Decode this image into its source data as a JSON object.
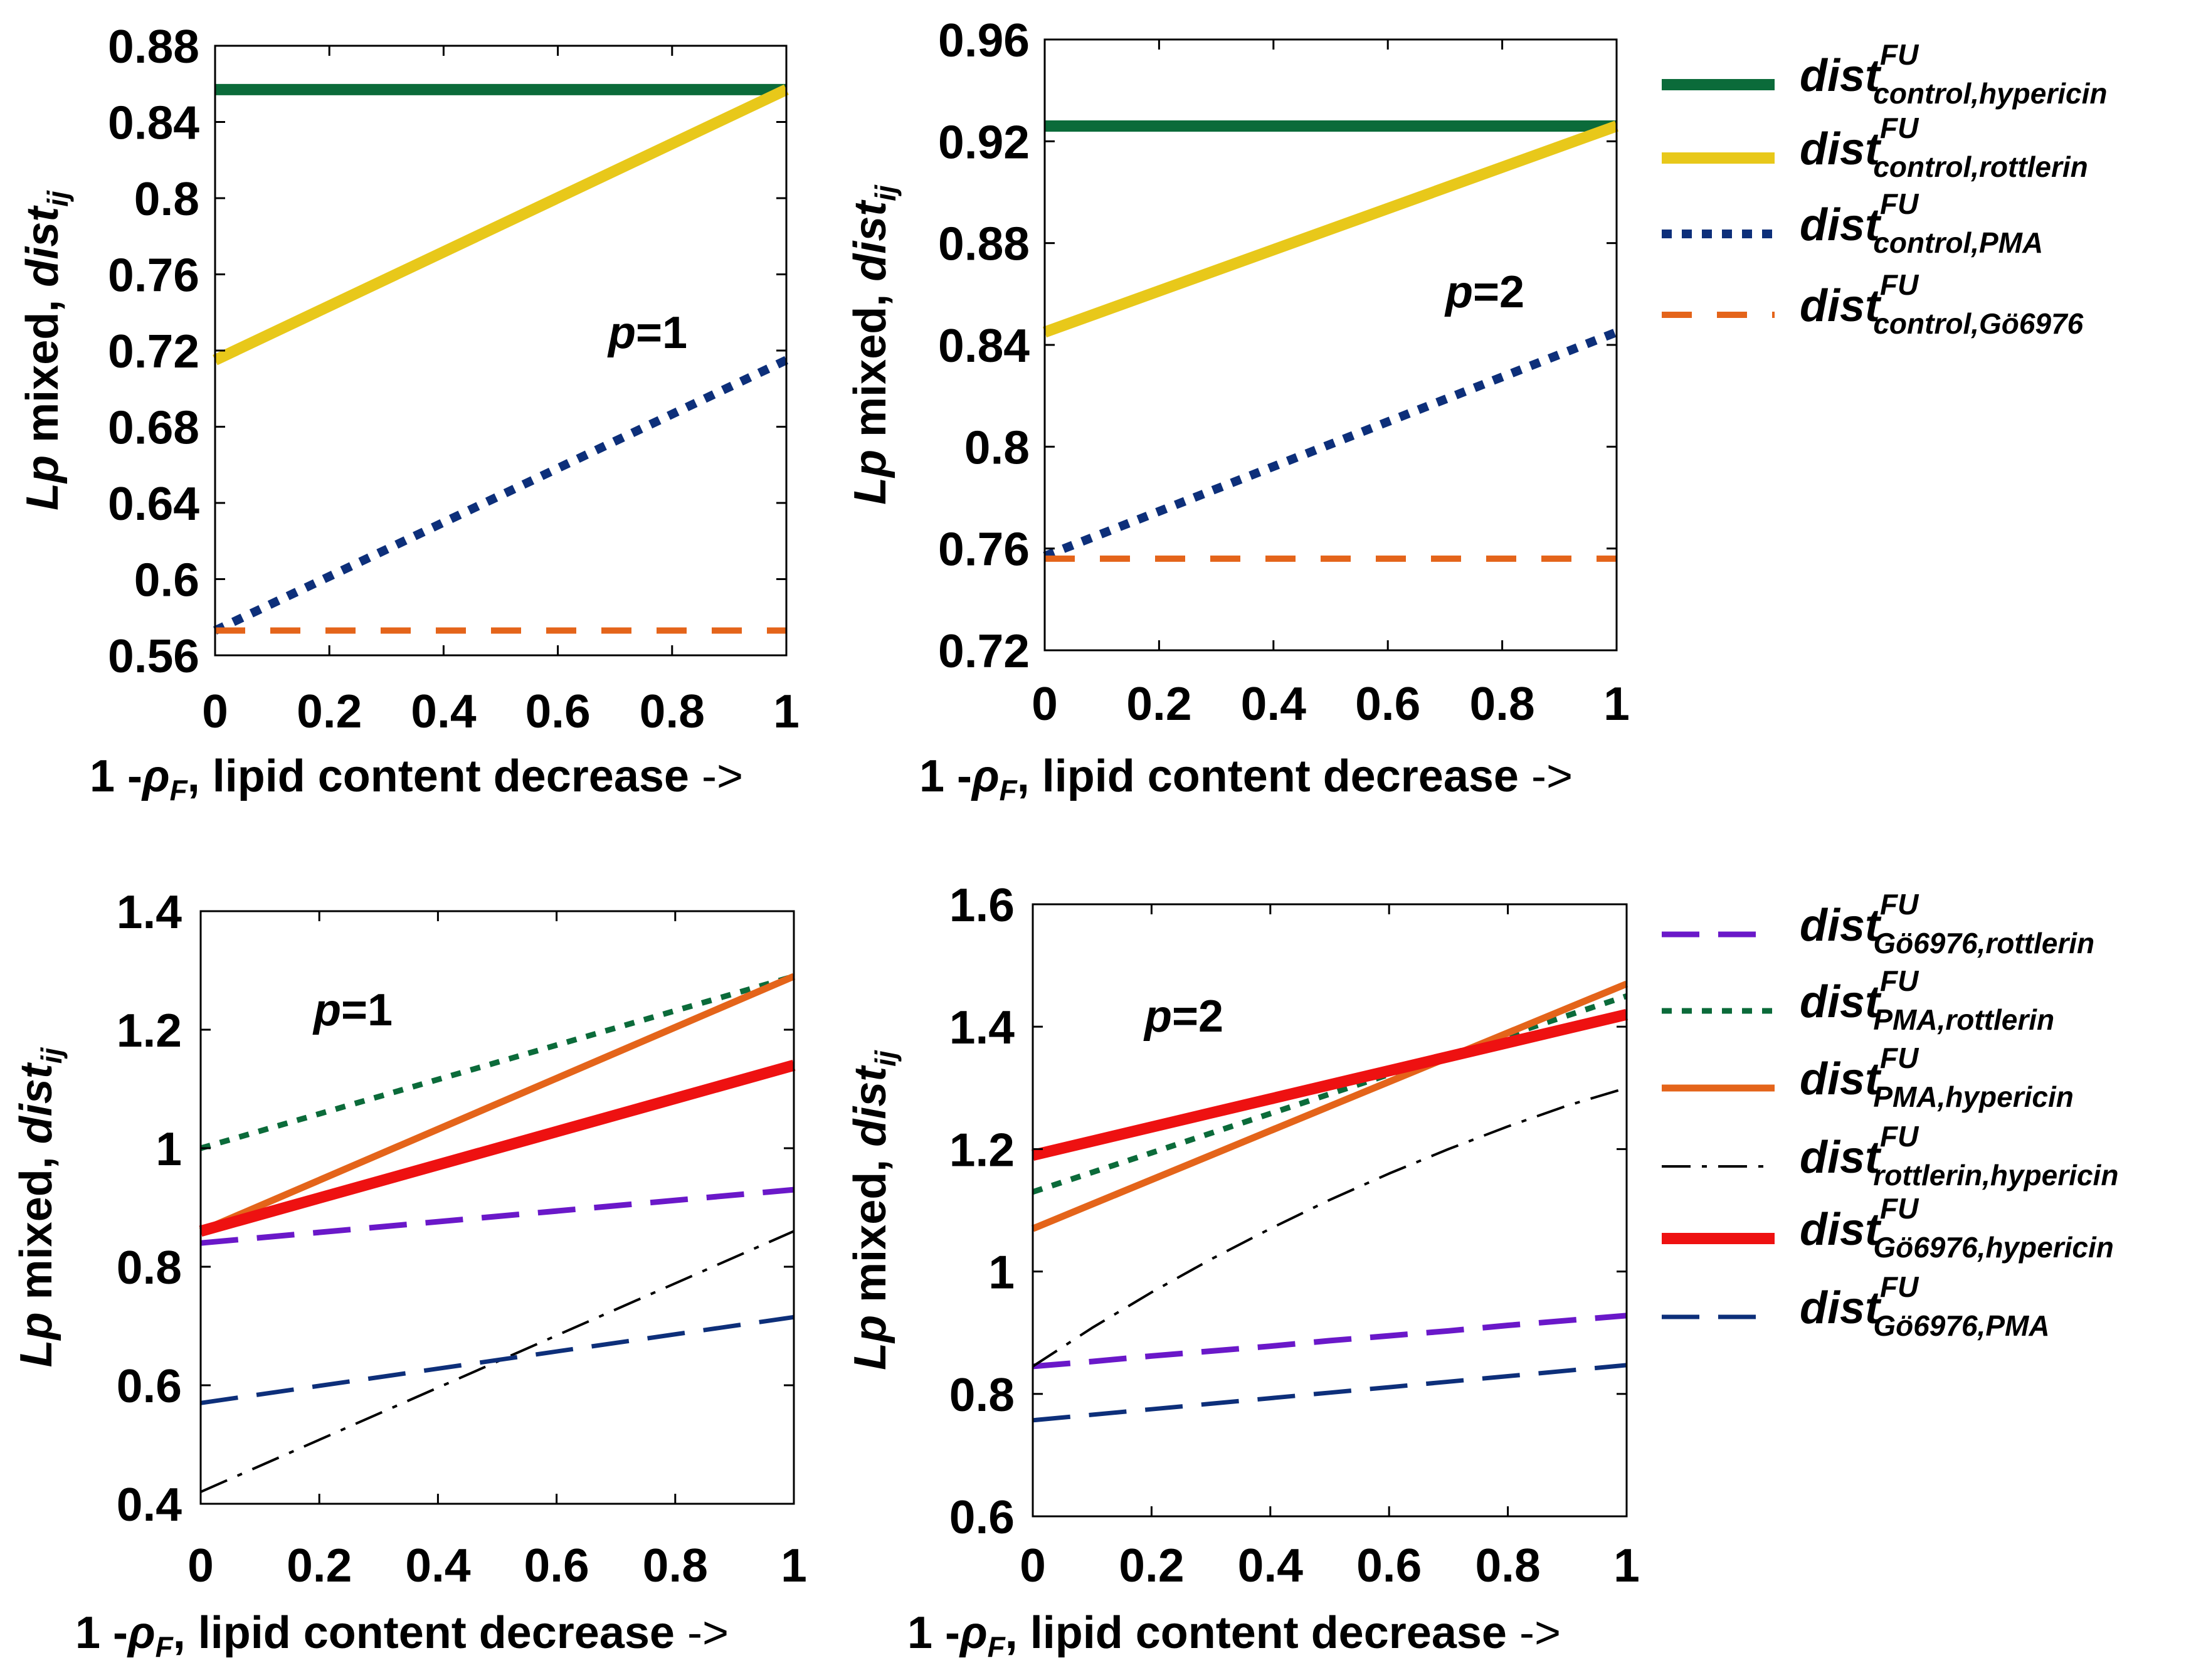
{
  "figure": {
    "arrow_glyph": "->"
  },
  "chart_data": [
    {
      "type": "line",
      "panel": "top-left",
      "annotation": {
        "italic": "p",
        "rest": "=1"
      },
      "x": [
        0,
        1
      ],
      "xlim": [
        0,
        1
      ],
      "ylim": [
        0.56,
        0.88
      ],
      "xticks": [
        0,
        0.2,
        0.4,
        0.6,
        0.8,
        1
      ],
      "xtick_labels": [
        "0",
        "0.2",
        "0.4",
        "0.6",
        "0.8",
        "1"
      ],
      "yticks": [
        0.56,
        0.6,
        0.64,
        0.68,
        0.72,
        0.76,
        0.8,
        0.84,
        0.88
      ],
      "ytick_labels": [
        "0.56",
        "0.6",
        "0.64",
        "0.68",
        "0.72",
        "0.76",
        "0.8",
        "0.84",
        "0.88"
      ],
      "xlabel": {
        "prefix": "1 -",
        "rho": "ρ",
        "sub": "F",
        "suffix": ", lipid content decrease"
      },
      "ylabel": {
        "italic1": "Lp",
        "middle": " mixed, ",
        "italic2": "dist",
        "sub": "ij"
      },
      "series": [
        {
          "name": "control,hypericin",
          "values": [
            0.857,
            0.857
          ],
          "color": "#0b6b3a",
          "style": "solid",
          "width": 18
        },
        {
          "name": "control,rottlerin",
          "values": [
            0.715,
            0.857
          ],
          "color": "#e8c81a",
          "style": "solid",
          "width": 18
        },
        {
          "name": "control,PMA",
          "values": [
            0.573,
            0.715
          ],
          "color": "#0d2f7a",
          "style": "dotted",
          "width": 14
        },
        {
          "name": "control,Gö6976",
          "values": [
            0.573,
            0.573
          ],
          "color": "#e4641a",
          "style": "dashed",
          "width": 10
        }
      ]
    },
    {
      "type": "line",
      "panel": "top-right",
      "annotation": {
        "italic": "p",
        "rest": "=2"
      },
      "x": [
        0,
        1
      ],
      "xlim": [
        0,
        1
      ],
      "ylim": [
        0.72,
        0.96
      ],
      "xticks": [
        0,
        0.2,
        0.4,
        0.6,
        0.8,
        1
      ],
      "xtick_labels": [
        "0",
        "0.2",
        "0.4",
        "0.6",
        "0.8",
        "1"
      ],
      "yticks": [
        0.72,
        0.76,
        0.8,
        0.84,
        0.88,
        0.92,
        0.96
      ],
      "ytick_labels": [
        "0.72",
        "0.76",
        "0.8",
        "0.84",
        "0.88",
        "0.92",
        "0.96"
      ],
      "xlabel": {
        "prefix": "1 -",
        "rho": "ρ",
        "sub": "F",
        "suffix": ", lipid content decrease"
      },
      "ylabel": {
        "italic1": "Lp",
        "middle": " mixed, ",
        "italic2": "dist",
        "sub": "ij"
      },
      "series": [
        {
          "name": "control,hypericin",
          "values": [
            0.926,
            0.926
          ],
          "color": "#0b6b3a",
          "style": "solid",
          "width": 18
        },
        {
          "name": "control,rottlerin",
          "values": [
            0.845,
            0.926
          ],
          "color": "#e8c81a",
          "style": "solid",
          "width": 18
        },
        {
          "name": "control,PMA",
          "values": [
            0.757,
            0.845
          ],
          "color": "#0d2f7a",
          "style": "dotted",
          "width": 14
        },
        {
          "name": "control,Gö6976",
          "values": [
            0.756,
            0.756
          ],
          "color": "#e4641a",
          "style": "dashed",
          "width": 10
        }
      ]
    },
    {
      "type": "line",
      "panel": "bottom-left",
      "annotation": {
        "italic": "p",
        "rest": "=1"
      },
      "x": [
        0,
        1
      ],
      "xlim": [
        0,
        1
      ],
      "ylim": [
        0.4,
        1.4
      ],
      "xticks": [
        0,
        0.2,
        0.4,
        0.6,
        0.8,
        1
      ],
      "xtick_labels": [
        "0",
        "0.2",
        "0.4",
        "0.6",
        "0.8",
        "1"
      ],
      "yticks": [
        0.4,
        0.6,
        0.8,
        1,
        1.2,
        1.4
      ],
      "ytick_labels": [
        "0.4",
        "0.6",
        "0.8",
        "1",
        "1.2",
        "1.4"
      ],
      "xlabel": {
        "prefix": "1 -",
        "rho": "ρ",
        "sub": "F",
        "suffix": ", lipid content decrease"
      },
      "ylabel": {
        "italic1": "Lp",
        "middle": " mixed, ",
        "italic2": "dist",
        "sub": "ij"
      },
      "series": [
        {
          "name": "Gö6976,rottlerin",
          "values": [
            0.84,
            0.93
          ],
          "color": "#6a18c9",
          "style": "longdash",
          "width": 9
        },
        {
          "name": "PMA,rottlerin",
          "values": [
            1.0,
            1.29
          ],
          "color": "#0b6b3a",
          "style": "dotted",
          "width": 9
        },
        {
          "name": "PMA,hypericin",
          "values": [
            0.86,
            1.29
          ],
          "color": "#e4641a",
          "style": "solid",
          "width": 11
        },
        {
          "name": "rottlerin,hypericin",
          "values": [
            0.42,
            0.86
          ],
          "color": "#000000",
          "style": "dashdot",
          "width": 4
        },
        {
          "name": "Gö6976,hypericin",
          "values": [
            0.86,
            1.14
          ],
          "color": "#ee1111",
          "style": "solid",
          "width": 18
        },
        {
          "name": "Gö6976,PMA",
          "values": [
            0.57,
            0.715
          ],
          "color": "#0d2f7a",
          "style": "longdash",
          "width": 7
        }
      ]
    },
    {
      "type": "line",
      "panel": "bottom-right",
      "annotation": {
        "italic": "p",
        "rest": "=2"
      },
      "x": [
        0,
        0.1,
        0.2,
        0.3,
        0.4,
        0.5,
        0.6,
        0.7,
        0.8,
        0.9,
        1
      ],
      "xlim": [
        0,
        1
      ],
      "ylim": [
        0.6,
        1.6
      ],
      "xticks": [
        0,
        0.2,
        0.4,
        0.6,
        0.8,
        1
      ],
      "xtick_labels": [
        "0",
        "0.2",
        "0.4",
        "0.6",
        "0.8",
        "1"
      ],
      "yticks": [
        0.6,
        0.8,
        1,
        1.2,
        1.4,
        1.6
      ],
      "ytick_labels": [
        "0.6",
        "0.8",
        "1",
        "1.2",
        "1.4",
        "1.6"
      ],
      "xlabel": {
        "prefix": "1 -",
        "rho": "ρ",
        "sub": "F",
        "suffix": ", lipid content decrease"
      },
      "ylabel": {
        "italic1": "Lp",
        "middle": " mixed, ",
        "italic2": "dist",
        "sub": "ij"
      },
      "series": [
        {
          "name": "Gö6976,rottlerin",
          "values": [
            0.845,
            0.853,
            0.862,
            0.87,
            0.878,
            0.887,
            0.895,
            0.903,
            0.912,
            0.92,
            0.928
          ],
          "color": "#6a18c9",
          "style": "longdash",
          "width": 9
        },
        {
          "name": "PMA,rottlerin",
          "values": [
            1.13,
            1.162,
            1.194,
            1.226,
            1.258,
            1.29,
            1.322,
            1.354,
            1.386,
            1.418,
            1.45
          ],
          "color": "#0b6b3a",
          "style": "dotted",
          "width": 9
        },
        {
          "name": "PMA,hypericin",
          "values": [
            1.07,
            1.11,
            1.15,
            1.19,
            1.23,
            1.27,
            1.31,
            1.35,
            1.39,
            1.43,
            1.47
          ],
          "color": "#e4641a",
          "style": "solid",
          "width": 11
        },
        {
          "name": "rottlerin,hypericin",
          "values": [
            0.845,
            0.908,
            0.966,
            1.02,
            1.07,
            1.117,
            1.16,
            1.2,
            1.237,
            1.271,
            1.3
          ],
          "color": "#000000",
          "style": "dashdot",
          "width": 4
        },
        {
          "name": "Gö6976,hypericin",
          "values": [
            1.19,
            1.213,
            1.236,
            1.259,
            1.282,
            1.305,
            1.328,
            1.351,
            1.374,
            1.397,
            1.42
          ],
          "color": "#ee1111",
          "style": "solid",
          "width": 18
        },
        {
          "name": "Gö6976,PMA",
          "values": [
            0.757,
            0.766,
            0.775,
            0.784,
            0.793,
            0.802,
            0.811,
            0.82,
            0.829,
            0.838,
            0.847
          ],
          "color": "#0d2f7a",
          "style": "longdash",
          "width": 7
        }
      ]
    }
  ],
  "legends": [
    {
      "entries": [
        {
          "main": "dist",
          "sup": "FU",
          "sub": "control,hypericin",
          "color": "#0b6b3a",
          "style": "solid",
          "width": 18
        },
        {
          "main": "dist",
          "sup": "FU",
          "sub": "control,rottlerin",
          "color": "#e8c81a",
          "style": "solid",
          "width": 18
        },
        {
          "main": "dist",
          "sup": "FU",
          "sub": "control,PMA",
          "color": "#0d2f7a",
          "style": "dotted",
          "width": 14
        },
        {
          "main": "dist",
          "sup": "FU",
          "sub": "control,Gö6976",
          "color": "#e4641a",
          "style": "dashed",
          "width": 10
        }
      ]
    },
    {
      "entries": [
        {
          "main": "dist",
          "sup": "FU",
          "sub": "Gö6976,rottlerin",
          "color": "#6a18c9",
          "style": "longdash",
          "width": 9
        },
        {
          "main": "dist",
          "sup": "FU",
          "sub": "PMA,rottlerin",
          "color": "#0b6b3a",
          "style": "dotted",
          "width": 9
        },
        {
          "main": "dist",
          "sup": "FU",
          "sub": "PMA,hypericin",
          "color": "#e4641a",
          "style": "solid",
          "width": 11
        },
        {
          "main": "dist",
          "sup": "FU",
          "sub": "rottlerin,hypericin",
          "color": "#000000",
          "style": "dashdot",
          "width": 4
        },
        {
          "main": "dist",
          "sup": "FU",
          "sub": "Gö6976,hypericin",
          "color": "#ee1111",
          "style": "solid",
          "width": 18
        },
        {
          "main": "dist",
          "sup": "FU",
          "sub": "Gö6976,PMA",
          "color": "#0d2f7a",
          "style": "longdash",
          "width": 7
        }
      ]
    }
  ]
}
